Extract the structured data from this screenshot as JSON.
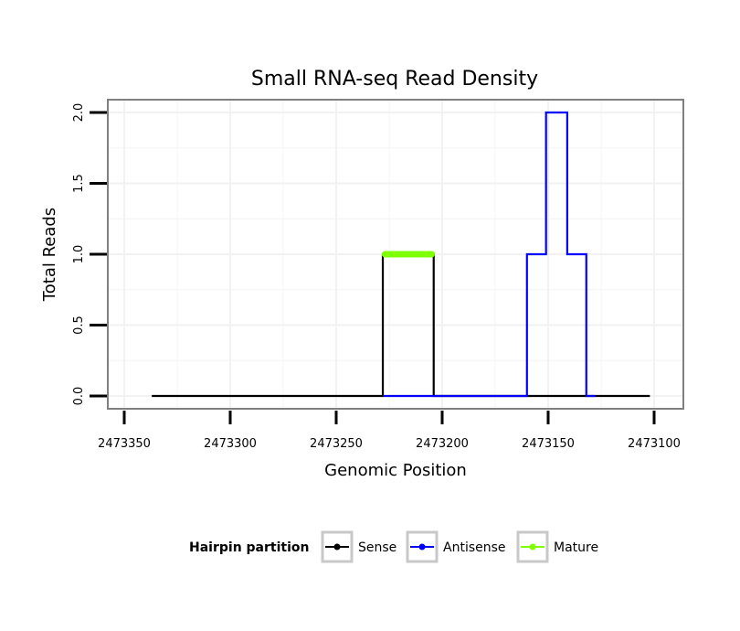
{
  "chart_data": {
    "type": "line",
    "title": "Small RNA-seq Read Density",
    "xlabel": "Genomic Position",
    "ylabel": "Total Reads",
    "xlim": [
      2473100,
      2473350
    ],
    "x_reversed": true,
    "ylim": [
      0,
      2
    ],
    "xticks": [
      2473350,
      2473300,
      2473250,
      2473200,
      2473150,
      2473100
    ],
    "xtick_labels": [
      "2473350",
      "2473300",
      "2473250",
      "2473200",
      "2473150",
      "2473100"
    ],
    "yticks": [
      0,
      0.5,
      1,
      1.5,
      2
    ],
    "ytick_labels": [
      "0.0",
      "0.5",
      "1.0",
      "1.5",
      "2.0"
    ],
    "grid": true,
    "legend": {
      "title": "Hairpin partition",
      "placement": "bottom"
    },
    "series": [
      {
        "name": "Sense",
        "color": "#000000",
        "x": [
          2473337,
          2473228,
          2473228,
          2473204,
          2473204,
          2473102
        ],
        "y": [
          0,
          0,
          1,
          1,
          0,
          0
        ]
      },
      {
        "name": "Antisense",
        "color": "#0000ff",
        "x": [
          2473228,
          2473160,
          2473160,
          2473151,
          2473151,
          2473141,
          2473141,
          2473132,
          2473132,
          2473128
        ],
        "y": [
          0,
          0,
          1,
          1,
          2,
          2,
          1,
          1,
          0,
          0
        ]
      },
      {
        "name": "Mature",
        "color": "#7fff00",
        "x": [
          2473227,
          2473205
        ],
        "y": [
          1,
          1
        ]
      }
    ]
  }
}
